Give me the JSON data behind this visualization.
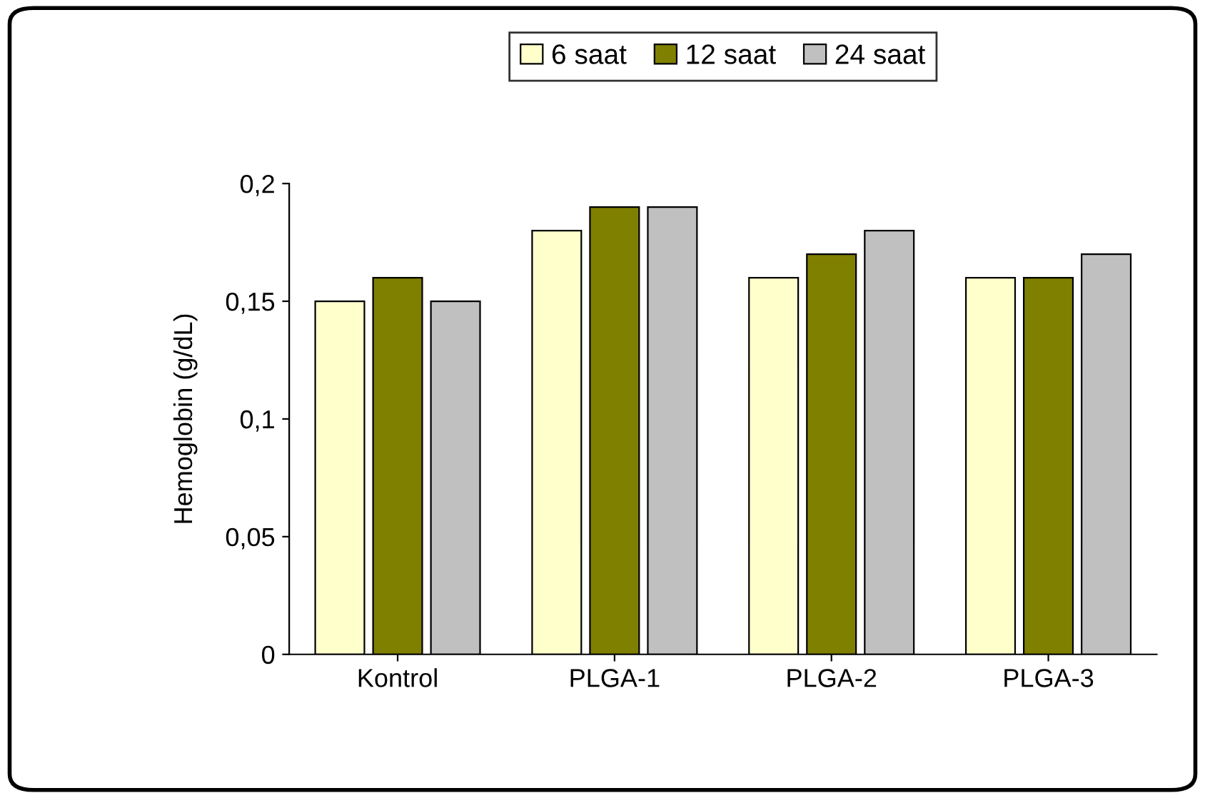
{
  "chart_data": {
    "type": "bar",
    "ylabel": "Hemoglobin (g/dL)",
    "categories": [
      "Kontrol",
      "PLGA-1",
      "PLGA-2",
      "PLGA-3"
    ],
    "series": [
      {
        "name": "6 saat",
        "color": "#ffffcc",
        "values": [
          0.15,
          0.18,
          0.16,
          0.16
        ]
      },
      {
        "name": "12 saat",
        "color": "#808000",
        "values": [
          0.16,
          0.19,
          0.17,
          0.16
        ]
      },
      {
        "name": "24 saat",
        "color": "#c0c0c0",
        "values": [
          0.15,
          0.19,
          0.18,
          0.17
        ]
      }
    ],
    "ylim": [
      0,
      0.2
    ],
    "yticks": [
      {
        "value": 0,
        "label": "0"
      },
      {
        "value": 0.05,
        "label": "0,05"
      },
      {
        "value": 0.1,
        "label": "0,1"
      },
      {
        "value": 0.15,
        "label": "0,15"
      },
      {
        "value": 0.2,
        "label": "0,2"
      }
    ],
    "grid": false,
    "legend": "top"
  }
}
